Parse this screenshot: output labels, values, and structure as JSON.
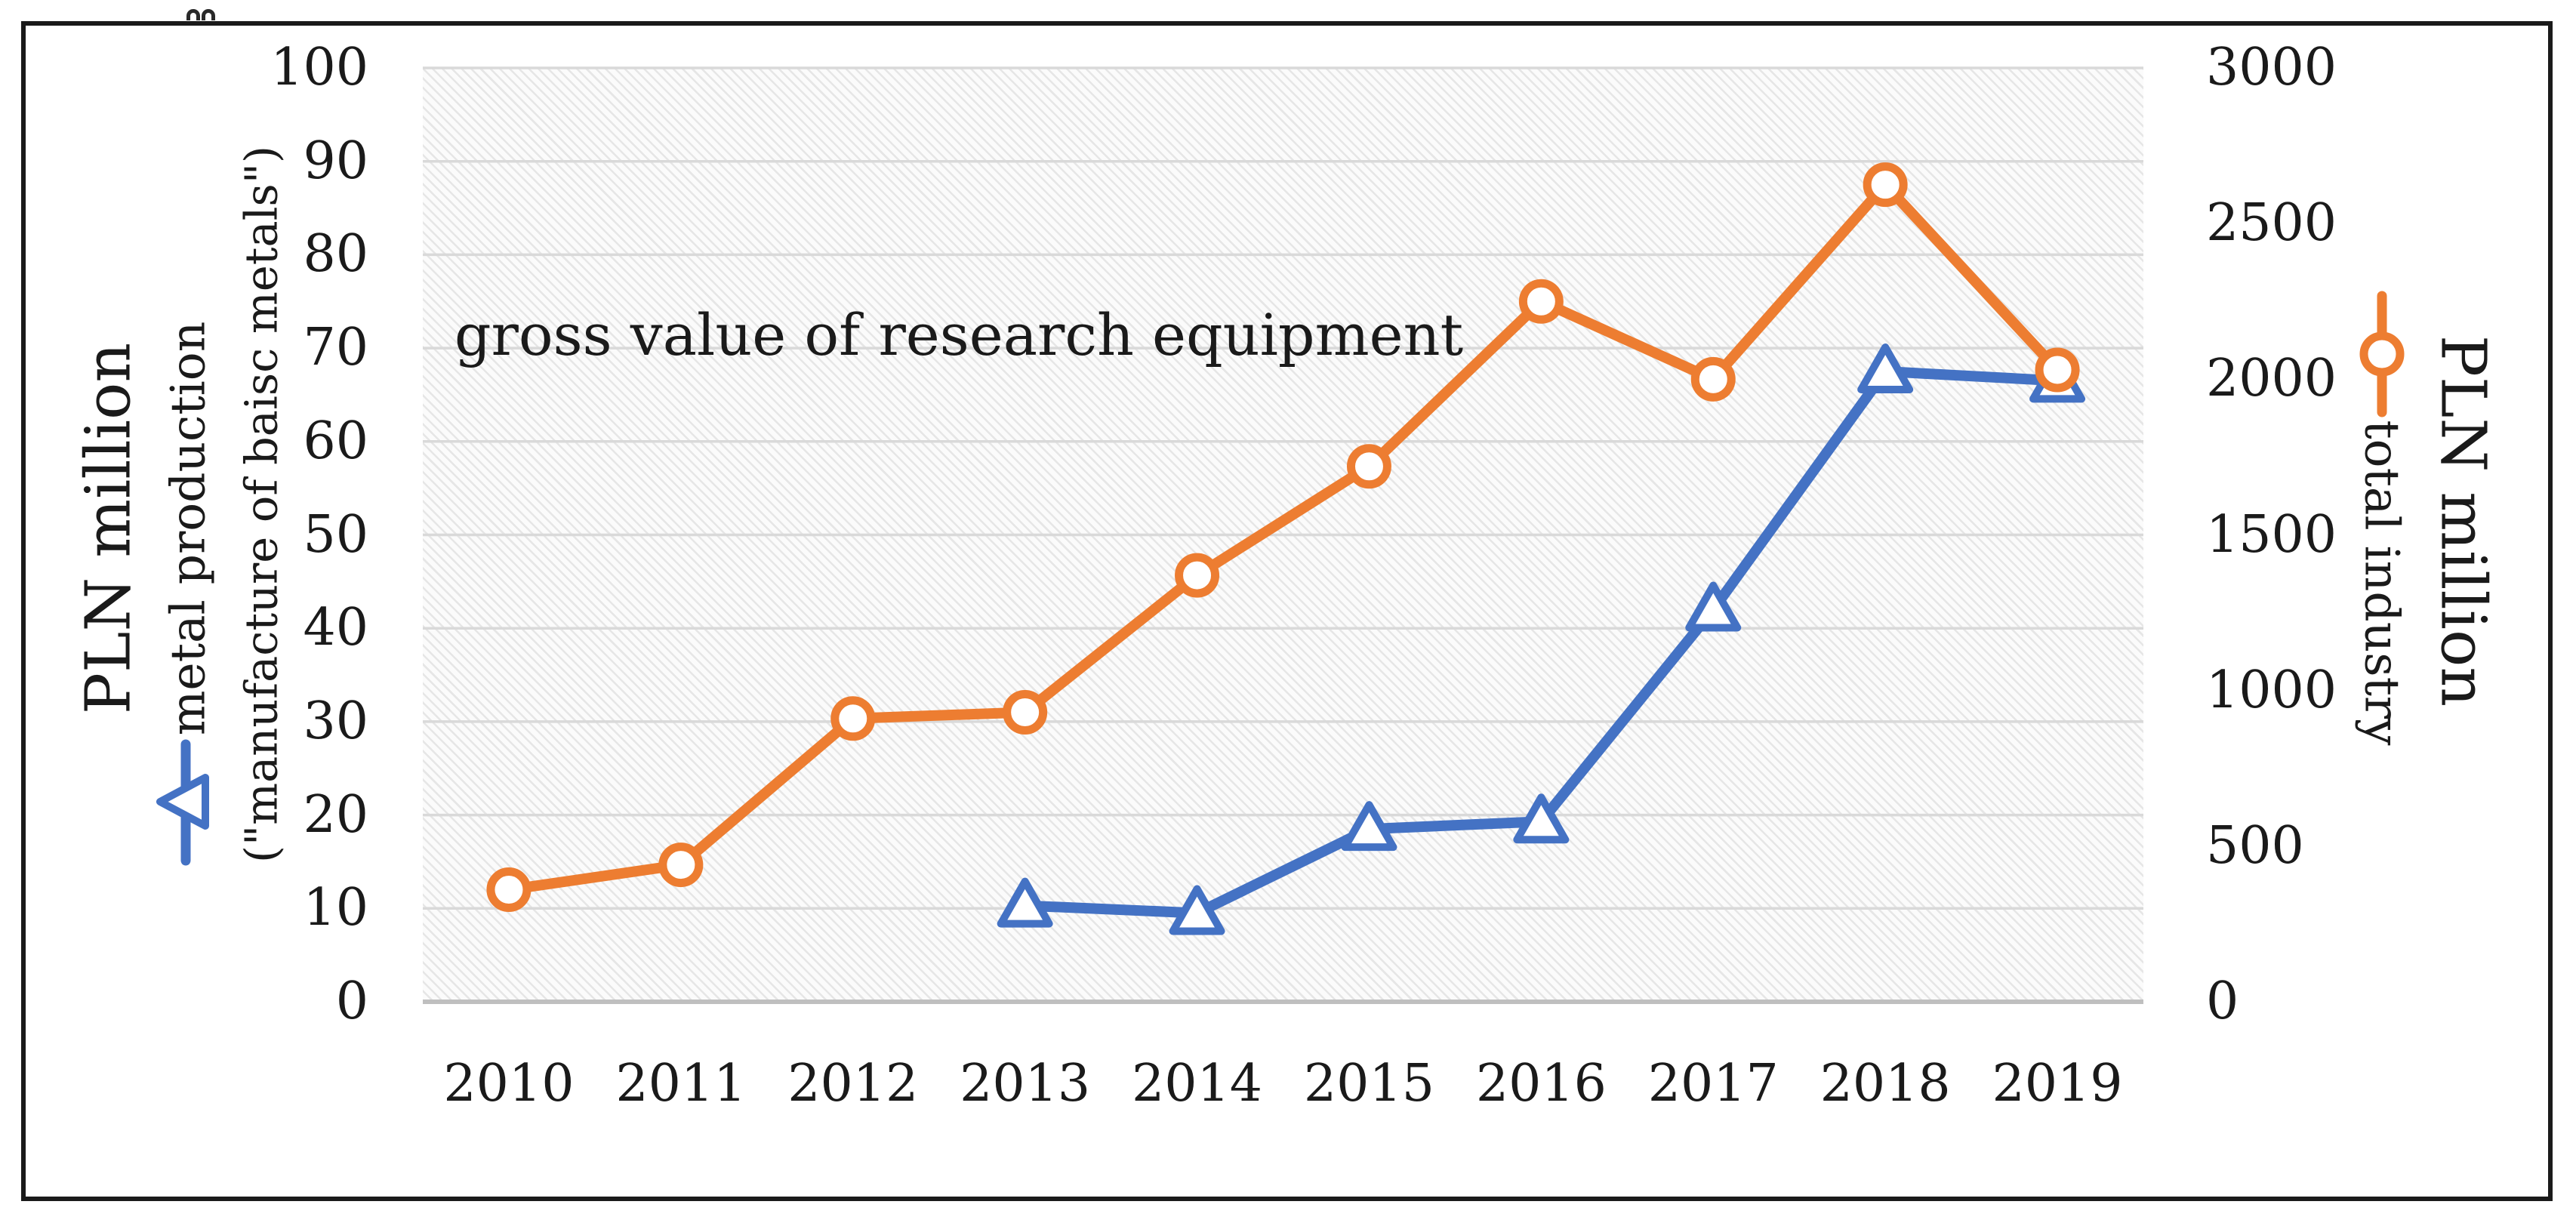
{
  "figure": {
    "border_color": "#1a1a1a",
    "background": "#ffffff",
    "plot_hatch_line_color": "#e6e6e6",
    "plot_background": "#fbfbfb",
    "gridline_color": "#d9d9d9",
    "axisline_color": "#bfbfbf",
    "stray_mark": "decorative double-bump ink artifact at top-left border"
  },
  "chart_data": {
    "type": "line",
    "title": "gross value of research equipment",
    "categories": [
      "2010",
      "2011",
      "2012",
      "2013",
      "2014",
      "2015",
      "2016",
      "2017",
      "2018",
      "2019"
    ],
    "series": [
      {
        "name": "metal production (\"manufacture of baisc metals\")",
        "axis": "left",
        "color": "#4472C4",
        "marker": "triangle",
        "values": [
          null,
          null,
          null,
          10.3,
          9.5,
          18.5,
          19.3,
          42,
          67.5,
          66.5
        ]
      },
      {
        "name": "total industry",
        "axis": "right",
        "color": "#ED7D31",
        "marker": "circle",
        "values": [
          360,
          440,
          910,
          930,
          1370,
          1720,
          2250,
          2000,
          2625,
          2030
        ]
      }
    ],
    "left_axis": {
      "unit_label": "PLN million",
      "series_label_line1": "metal production",
      "series_label_line2": "(\"manufacture of baisc metals\")",
      "min": 0,
      "max": 100,
      "step": 10,
      "ticks": [
        "0",
        "10",
        "20",
        "30",
        "40",
        "50",
        "60",
        "70",
        "80",
        "90",
        "100"
      ]
    },
    "right_axis": {
      "unit_label": "PLN million",
      "series_label": "total industry",
      "min": 0,
      "max": 3000,
      "step": 500,
      "ticks": [
        "0",
        "500",
        "1000",
        "1500",
        "2000",
        "2500",
        "3000"
      ]
    },
    "grid": "horizontal",
    "legend_position": "rotated labels on left and right axes"
  }
}
